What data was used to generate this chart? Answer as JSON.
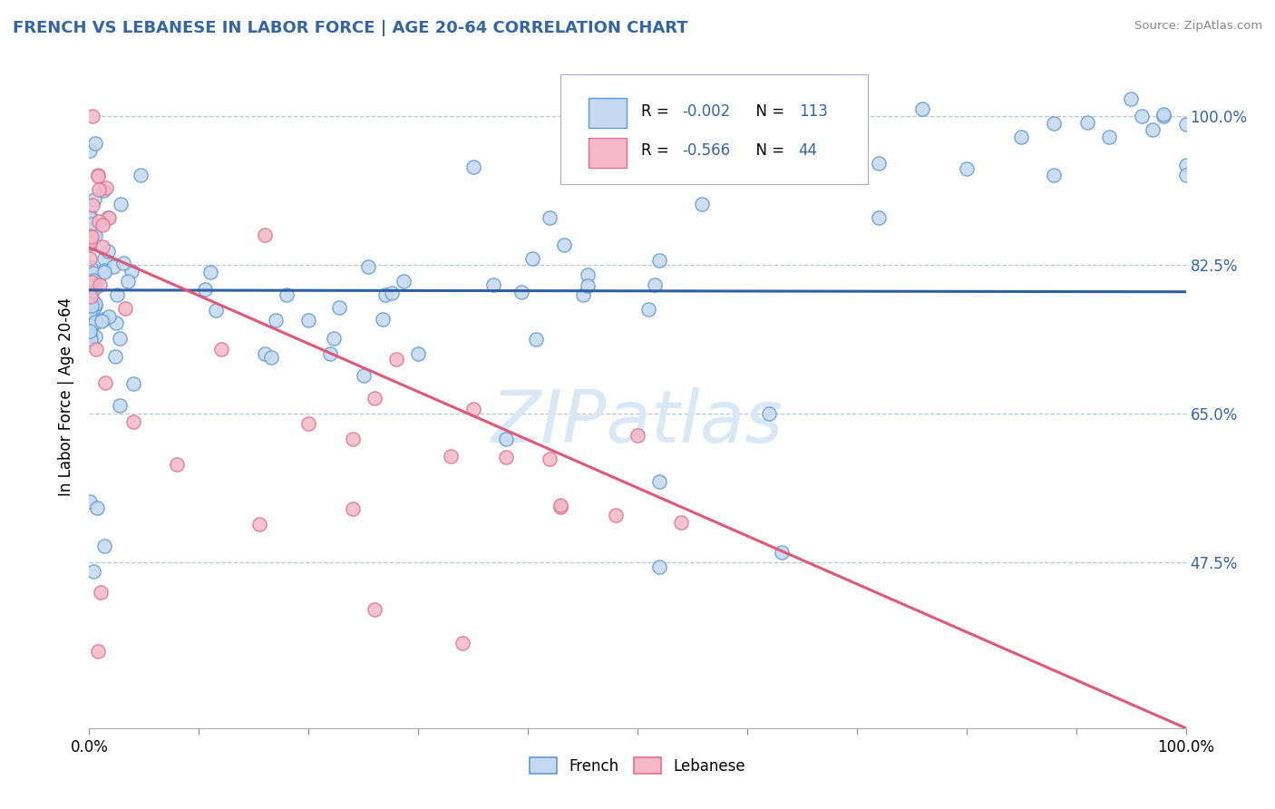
{
  "title": "FRENCH VS LEBANESE IN LABOR FORCE | AGE 20-64 CORRELATION CHART",
  "source": "Source: ZipAtlas.com",
  "ylabel": "In Labor Force | Age 20-64",
  "ytick_labels": [
    "100.0%",
    "82.5%",
    "65.0%",
    "47.5%"
  ],
  "ytick_values": [
    1.0,
    0.825,
    0.65,
    0.475
  ],
  "french_R": -0.002,
  "french_N": 113,
  "lebanese_R": -0.566,
  "lebanese_N": 44,
  "french_color": "#c5d9f0",
  "lebanese_color": "#f4b8c8",
  "french_edge_color": "#5b9bd5",
  "lebanese_edge_color": "#e07090",
  "french_line_color": "#2e5fa3",
  "lebanese_line_color": "#e05878",
  "background_color": "#ffffff",
  "grid_color": "#b0b8c8",
  "title_color": "#3465a4",
  "axis_label_color": "#3465a4",
  "watermark_color": "#d8e8f4",
  "xlim": [
    0.0,
    1.0
  ],
  "ylim": [
    0.28,
    1.06
  ],
  "french_line_y0": 0.795,
  "french_line_y1": 0.793,
  "lebanese_line_y0": 0.845,
  "lebanese_line_y1": 0.28
}
